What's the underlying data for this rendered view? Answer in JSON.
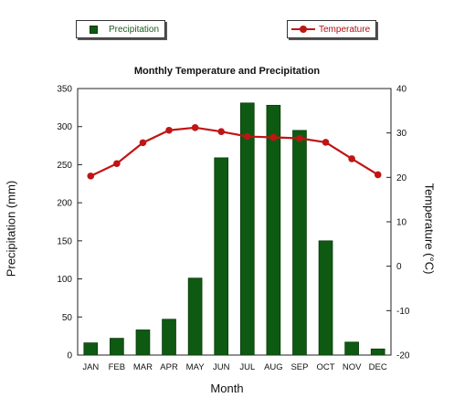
{
  "chart_data": {
    "type": "bar",
    "title": "Monthly Temperature and Precipitation",
    "xlabel": "Month",
    "ylabel": "Precipitation (mm)",
    "y2label": "Temperature (°C)",
    "categories": [
      "JAN",
      "FEB",
      "MAR",
      "APR",
      "MAY",
      "JUN",
      "JUL",
      "AUG",
      "SEP",
      "OCT",
      "NOV",
      "DEC"
    ],
    "ylim": [
      0,
      350
    ],
    "y_ticks": [
      0,
      50,
      100,
      150,
      200,
      250,
      300,
      350
    ],
    "y2lim": [
      -20,
      40
    ],
    "y2_ticks": [
      -20,
      -10,
      0,
      10,
      20,
      30,
      40
    ],
    "grid": false,
    "legend_position": "top",
    "series": [
      {
        "name": "Precipitation",
        "type": "bar",
        "axis": "left",
        "color": "#0e5a12",
        "values": [
          16,
          22,
          33,
          47,
          101,
          259,
          331,
          328,
          295,
          150,
          17,
          8
        ]
      },
      {
        "name": "Temperature",
        "type": "line",
        "axis": "right",
        "color": "#c01515",
        "values": [
          20.3,
          23.1,
          27.8,
          30.6,
          31.2,
          30.3,
          29.2,
          29.0,
          28.8,
          27.9,
          24.2,
          20.6
        ]
      }
    ]
  }
}
